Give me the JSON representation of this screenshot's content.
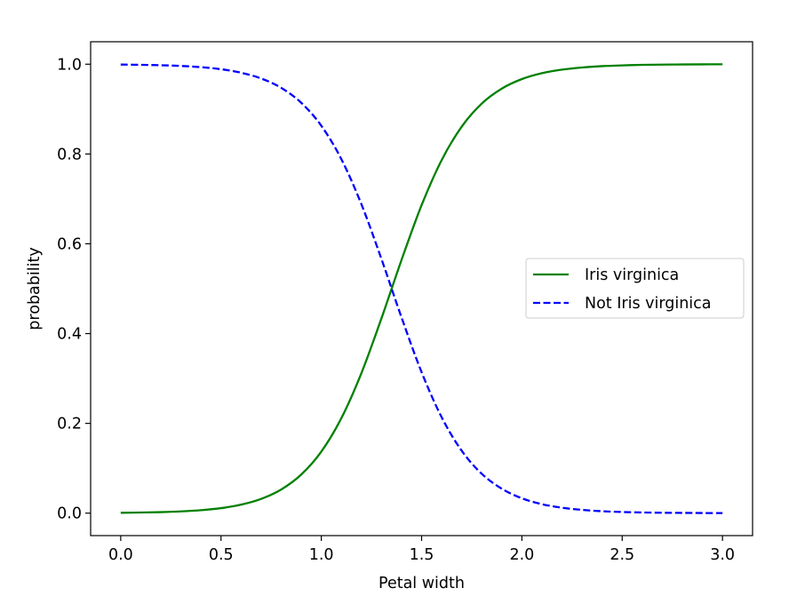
{
  "chart_data": {
    "type": "line",
    "title": "",
    "xlabel": "Petal width",
    "ylabel": "probability",
    "xlim": [
      -0.15,
      3.15
    ],
    "ylim": [
      -0.05,
      1.05
    ],
    "xticks": [
      0.0,
      0.5,
      1.0,
      1.5,
      2.0,
      2.5,
      3.0
    ],
    "xtick_labels": [
      "0.0",
      "0.5",
      "1.0",
      "1.5",
      "2.0",
      "2.5",
      "3.0"
    ],
    "yticks": [
      0.0,
      0.2,
      0.4,
      0.6,
      0.8,
      1.0
    ],
    "ytick_labels": [
      "0.0",
      "0.2",
      "0.4",
      "0.6",
      "0.8",
      "1.0"
    ],
    "grid": false,
    "legend_position": "center-right",
    "x": [
      0.0,
      0.1,
      0.2,
      0.3,
      0.4,
      0.5,
      0.6,
      0.7,
      0.8,
      0.9,
      1.0,
      1.1,
      1.2,
      1.3,
      1.4,
      1.5,
      1.6,
      1.7,
      1.8,
      1.9,
      2.0,
      2.1,
      2.2,
      2.3,
      2.4,
      2.5,
      2.6,
      2.7,
      2.8,
      2.9,
      3.0
    ],
    "series": [
      {
        "name": "Iris virginica",
        "color": "#008000",
        "style": "solid",
        "values": [
          0.0008,
          0.0014,
          0.0023,
          0.0039,
          0.0066,
          0.0112,
          0.019,
          0.0318,
          0.0527,
          0.086,
          0.1371,
          0.2116,
          0.312,
          0.4341,
          0.5641,
          0.686,
          0.7864,
          0.861,
          0.9124,
          0.9457,
          0.9669,
          0.98,
          0.9879,
          0.9927,
          0.9957,
          0.9974,
          0.9985,
          0.9991,
          0.9994,
          0.9997,
          0.9998
        ]
      },
      {
        "name": "Not Iris virginica",
        "color": "#0000ff",
        "style": "dashed",
        "values": [
          0.9992,
          0.9986,
          0.9977,
          0.9961,
          0.9934,
          0.9888,
          0.981,
          0.9682,
          0.9473,
          0.914,
          0.8629,
          0.7884,
          0.688,
          0.5659,
          0.4359,
          0.314,
          0.2136,
          0.139,
          0.0876,
          0.0543,
          0.0331,
          0.02,
          0.0121,
          0.0073,
          0.0043,
          0.0026,
          0.0015,
          0.0009,
          0.0006,
          0.0003,
          0.0002
        ]
      }
    ]
  }
}
